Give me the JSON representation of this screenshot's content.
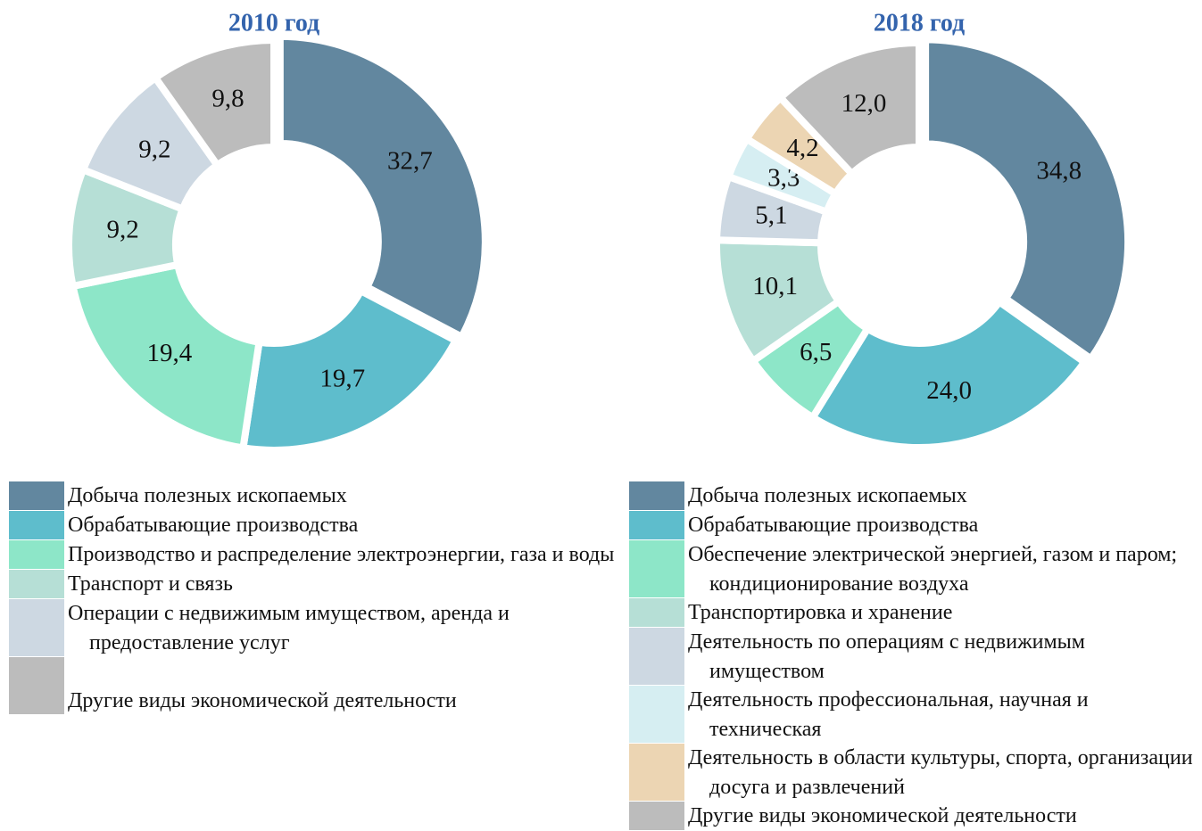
{
  "chart_data": [
    {
      "type": "donut",
      "title": "2010 год",
      "categories": [
        "Добыча полезных ископаемых",
        "Обрабатывающие производства",
        "Производство и распределение электроэнергии, газа и воды",
        "Транспорт и связь",
        "Операции с недвижимым имуществом, аренда и предоставление услуг",
        "Другие виды экономической деятельности"
      ],
      "values": [
        32.7,
        19.7,
        19.4,
        9.2,
        9.2,
        9.8
      ],
      "value_labels": [
        "32,7",
        "19,7",
        "19,4",
        "9,2",
        "9,2",
        "9,8"
      ],
      "colors": [
        "#62879f",
        "#5ebdcc",
        "#8de6c8",
        "#b6dfd6",
        "#cdd8e2",
        "#bcbcbc"
      ]
    },
    {
      "type": "donut",
      "title": "2018 год",
      "categories": [
        "Добыча полезных ископаемых",
        "Обрабатывающие производства",
        "Обеспечение электрической энергией, газом и паром; кондиционирование воздуха",
        "Транспортировка и хранение",
        "Деятельность по операциям с недвижимым имуществом",
        "Деятельность профессиональная, научная и техническая",
        "Деятельность в области культуры, спорта, организации досуга и развлечений",
        "Другие виды экономической деятельности"
      ],
      "values": [
        34.8,
        24.0,
        6.5,
        10.1,
        5.1,
        3.3,
        4.2,
        12.0
      ],
      "value_labels": [
        "34,8",
        "24,0",
        "6,5",
        "10,1",
        "5,1",
        "3,3",
        "4,2",
        "12,0"
      ],
      "colors": [
        "#62879f",
        "#5ebdcc",
        "#8de6c8",
        "#b6dfd6",
        "#cdd8e2",
        "#d6eef2",
        "#ecd5b3",
        "#bcbcbc"
      ]
    }
  ]
}
